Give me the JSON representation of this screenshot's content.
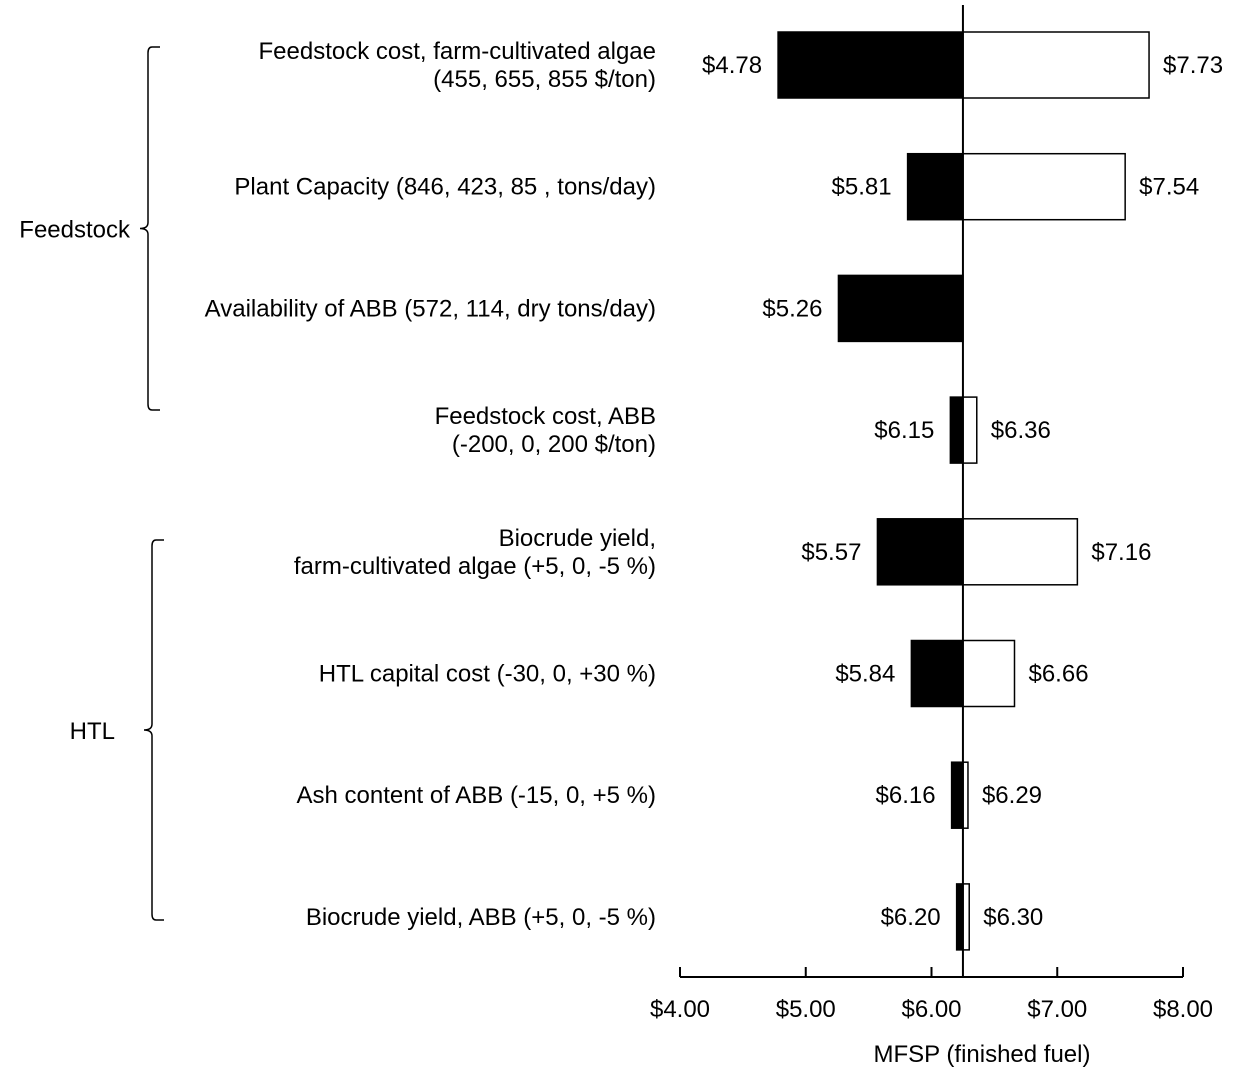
{
  "chart_data": {
    "type": "bar",
    "orientation": "horizontal",
    "subtype": "tornado",
    "title": "",
    "xlabel": "MFSP (finished fuel)",
    "ylabel": "",
    "xlim": [
      4.0,
      8.0
    ],
    "baseline": 6.25,
    "ticks": [
      4.0,
      5.0,
      6.0,
      7.0,
      8.0
    ],
    "tick_labels": [
      "$4.00",
      "$5.00",
      "$6.00",
      "$7.00",
      "$8.00"
    ],
    "grid": false,
    "legend": "none",
    "colors": {
      "low_bar": "#000000",
      "high_bar": "#ffffff",
      "outline": "#000000"
    },
    "groups": [
      {
        "name": "Feedstock",
        "first_row": 0,
        "last_row": 3
      },
      {
        "name": "HTL",
        "first_row": 4,
        "last_row": 7
      }
    ],
    "rows": [
      {
        "label_lines": [
          "Feedstock cost, farm-cultivated algae",
          "(455, 655, 855 $/ton)"
        ],
        "low": 4.78,
        "high": 7.73,
        "low_label": "$4.78",
        "high_label": "$7.73"
      },
      {
        "label_lines": [
          "Plant Capacity (846, 423, 85 , tons/day)"
        ],
        "low": 5.81,
        "high": 7.54,
        "low_label": "$5.81",
        "high_label": "$7.54"
      },
      {
        "label_lines": [
          "Availability of ABB (572, 114, dry tons/day)"
        ],
        "low": 5.26,
        "high": null,
        "low_label": "$5.26",
        "high_label": ""
      },
      {
        "label_lines": [
          "Feedstock cost, ABB",
          "(-200, 0, 200 $/ton)"
        ],
        "low": 6.15,
        "high": 6.36,
        "low_label": "$6.15",
        "high_label": "$6.36"
      },
      {
        "label_lines": [
          "Biocrude yield,",
          "farm-cultivated algae (+5, 0, -5 %)"
        ],
        "low": 5.57,
        "high": 7.16,
        "low_label": "$5.57",
        "high_label": "$7.16"
      },
      {
        "label_lines": [
          "HTL capital cost (-30, 0, +30 %)"
        ],
        "low": 5.84,
        "high": 6.66,
        "low_label": "$5.84",
        "high_label": "$6.66"
      },
      {
        "label_lines": [
          "Ash content of ABB (-15, 0, +5 %)"
        ],
        "low": 6.16,
        "high": 6.29,
        "low_label": "$6.16",
        "high_label": "$6.29"
      },
      {
        "label_lines": [
          "Biocrude yield, ABB (+5, 0, -5 %)"
        ],
        "low": 6.2,
        "high": 6.3,
        "low_label": "$6.20",
        "high_label": "$6.30"
      }
    ]
  }
}
